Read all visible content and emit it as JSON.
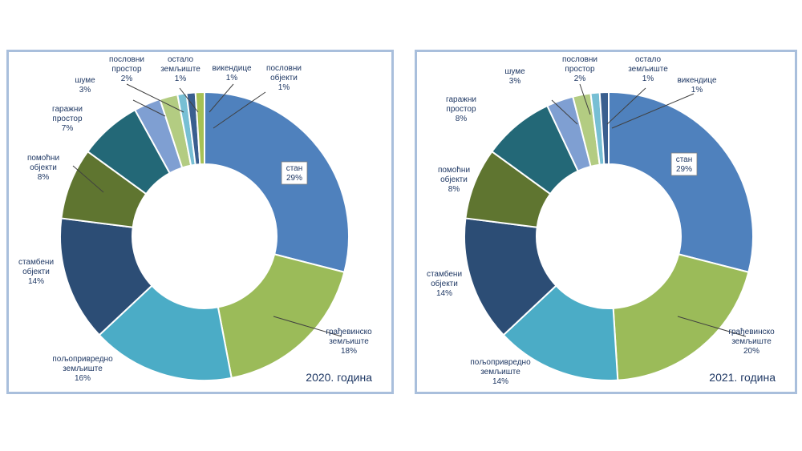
{
  "colors": {
    "stan": "#4f81bd",
    "gradjevinsko": "#9bbb59",
    "poljoprivredno": "#4bacc6",
    "stambeni": "#2c4d75",
    "pomocni": "#5f7530",
    "garazni": "#236877",
    "sume": "#7f9fd2",
    "poslovni_prostor": "#b3cc82",
    "ostalo": "#77bfd4",
    "vikendice": "#3a5f8f",
    "poslovni_objekti": "#a6c155"
  },
  "chart_data": [
    {
      "type": "donut",
      "year_label": "2020. година",
      "categories": [
        "стан",
        "грађевинско земљиште",
        "пољопривредно земљиште",
        "стамбени објекти",
        "помоћни објекти",
        "гаражни простор",
        "шуме",
        "пословни простор",
        "остало земљиште",
        "викендице",
        "пословни објекти"
      ],
      "values": [
        29,
        18,
        16,
        14,
        8,
        7,
        3,
        2,
        1,
        1,
        1
      ],
      "labels": [
        {
          "lines": [
            "стан",
            "29%"
          ]
        },
        {
          "lines": [
            "грађевинско",
            "земљиште",
            "18%"
          ]
        },
        {
          "lines": [
            "пољопривредно",
            "земљиште",
            "16%"
          ]
        },
        {
          "lines": [
            "стамбени",
            "објекти",
            "14%"
          ]
        },
        {
          "lines": [
            "помоћни",
            "објекти",
            "8%"
          ]
        },
        {
          "lines": [
            "гаражни",
            "простор",
            "7%"
          ]
        },
        {
          "lines": [
            "шуме",
            "3%"
          ]
        },
        {
          "lines": [
            "пословни",
            "простор",
            "2%"
          ]
        },
        {
          "lines": [
            "остало",
            "земљиште",
            "1%"
          ]
        },
        {
          "lines": [
            "викендице",
            "1%"
          ]
        },
        {
          "lines": [
            "пословни",
            "објекти",
            "1%"
          ]
        }
      ]
    },
    {
      "type": "donut",
      "year_label": "2021. година",
      "categories": [
        "стан",
        "грађевинско земљиште",
        "пољопривредно земљиште",
        "стамбени објекти",
        "помоћни објекти",
        "гаражни простор",
        "шуме",
        "пословни простор",
        "остало земљиште",
        "викендице"
      ],
      "values": [
        29,
        20,
        14,
        14,
        8,
        8,
        3,
        2,
        1,
        1
      ],
      "labels": [
        {
          "lines": [
            "стан",
            "29%"
          ]
        },
        {
          "lines": [
            "грађевинско",
            "земљиште",
            "20%"
          ]
        },
        {
          "lines": [
            "пољопривредно",
            "земљиште",
            "14%"
          ]
        },
        {
          "lines": [
            "стамбени",
            "објекти",
            "14%"
          ]
        },
        {
          "lines": [
            "помоћни",
            "објекти",
            "8%"
          ]
        },
        {
          "lines": [
            "гаражни",
            "простор",
            "8%"
          ]
        },
        {
          "lines": [
            "шуме",
            "3%"
          ]
        },
        {
          "lines": [
            "пословни",
            "простор",
            "2%"
          ]
        },
        {
          "lines": [
            "остало",
            "земљиште",
            "1%"
          ]
        },
        {
          "lines": [
            "викендице",
            "1%"
          ]
        }
      ]
    }
  ]
}
